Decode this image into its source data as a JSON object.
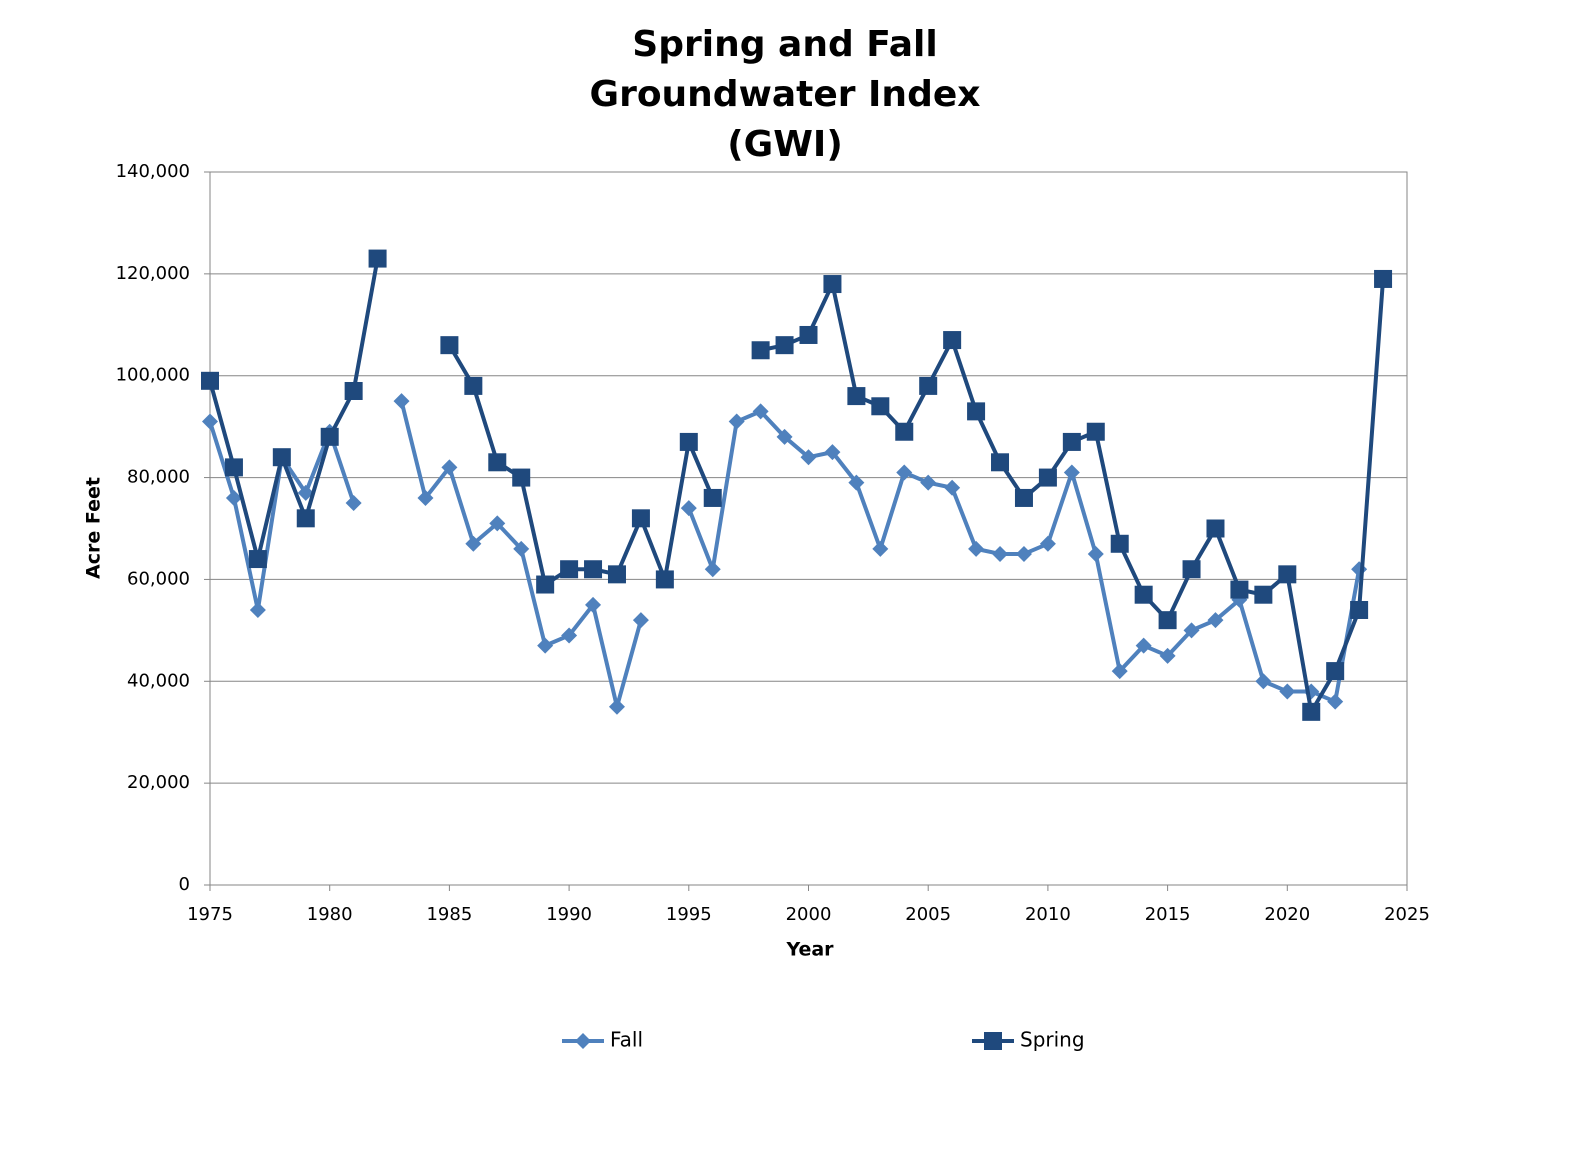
{
  "chart_data": {
    "type": "line",
    "title": [
      "Spring and Fall",
      "Groundwater Index",
      "(GWI)"
    ],
    "x_label": "Year",
    "y_label": "Acre Feet",
    "x": [
      1975,
      1976,
      1977,
      1978,
      1979,
      1980,
      1981,
      1982,
      1983,
      1984,
      1985,
      1986,
      1987,
      1988,
      1989,
      1990,
      1991,
      1992,
      1993,
      1994,
      1995,
      1996,
      1997,
      1998,
      1999,
      2000,
      2001,
      2002,
      2003,
      2004,
      2005,
      2006,
      2007,
      2008,
      2009,
      2010,
      2011,
      2012,
      2013,
      2014,
      2015,
      2016,
      2017,
      2018,
      2019,
      2020,
      2021,
      2022,
      2023,
      2024
    ],
    "series": [
      {
        "name": "Fall",
        "color": "#4f81bd",
        "marker": "diamond",
        "values": [
          91000,
          76000,
          54000,
          84000,
          77000,
          89000,
          75000,
          null,
          95000,
          76000,
          82000,
          67000,
          71000,
          66000,
          47000,
          49000,
          55000,
          35000,
          52000,
          null,
          74000,
          62000,
          91000,
          93000,
          88000,
          84000,
          85000,
          79000,
          66000,
          81000,
          79000,
          78000,
          66000,
          65000,
          65000,
          67000,
          81000,
          65000,
          42000,
          47000,
          45000,
          50000,
          52000,
          56000,
          40000,
          38000,
          38000,
          36000,
          62000,
          null
        ]
      },
      {
        "name": "Spring",
        "color": "#1f497d",
        "marker": "square",
        "values": [
          99000,
          82000,
          64000,
          84000,
          72000,
          88000,
          97000,
          123000,
          null,
          null,
          106000,
          98000,
          83000,
          80000,
          59000,
          62000,
          62000,
          61000,
          72000,
          60000,
          87000,
          76000,
          null,
          105000,
          106000,
          108000,
          118000,
          96000,
          94000,
          89000,
          98000,
          107000,
          93000,
          83000,
          76000,
          80000,
          87000,
          89000,
          67000,
          57000,
          52000,
          62000,
          70000,
          58000,
          57000,
          61000,
          34000,
          42000,
          54000,
          119000
        ]
      }
    ],
    "xlim": [
      1975,
      2025
    ],
    "xticks": [
      1975,
      1980,
      1985,
      1990,
      1995,
      2000,
      2005,
      2010,
      2015,
      2020,
      2025
    ],
    "ylim": [
      0,
      140000
    ],
    "yticks": [
      0,
      {
        "value": 20000,
        "label": "20,000"
      },
      {
        "value": 40000,
        "label": "40,000"
      },
      {
        "value": 60000,
        "label": "60,000"
      },
      {
        "value": 80000,
        "label": "80,000"
      },
      {
        "value": 100000,
        "label": "100,000"
      },
      {
        "value": 120000,
        "label": "120,000"
      },
      {
        "value": 140000,
        "label": "140,000"
      }
    ],
    "grid": true,
    "legend": "bottom"
  }
}
